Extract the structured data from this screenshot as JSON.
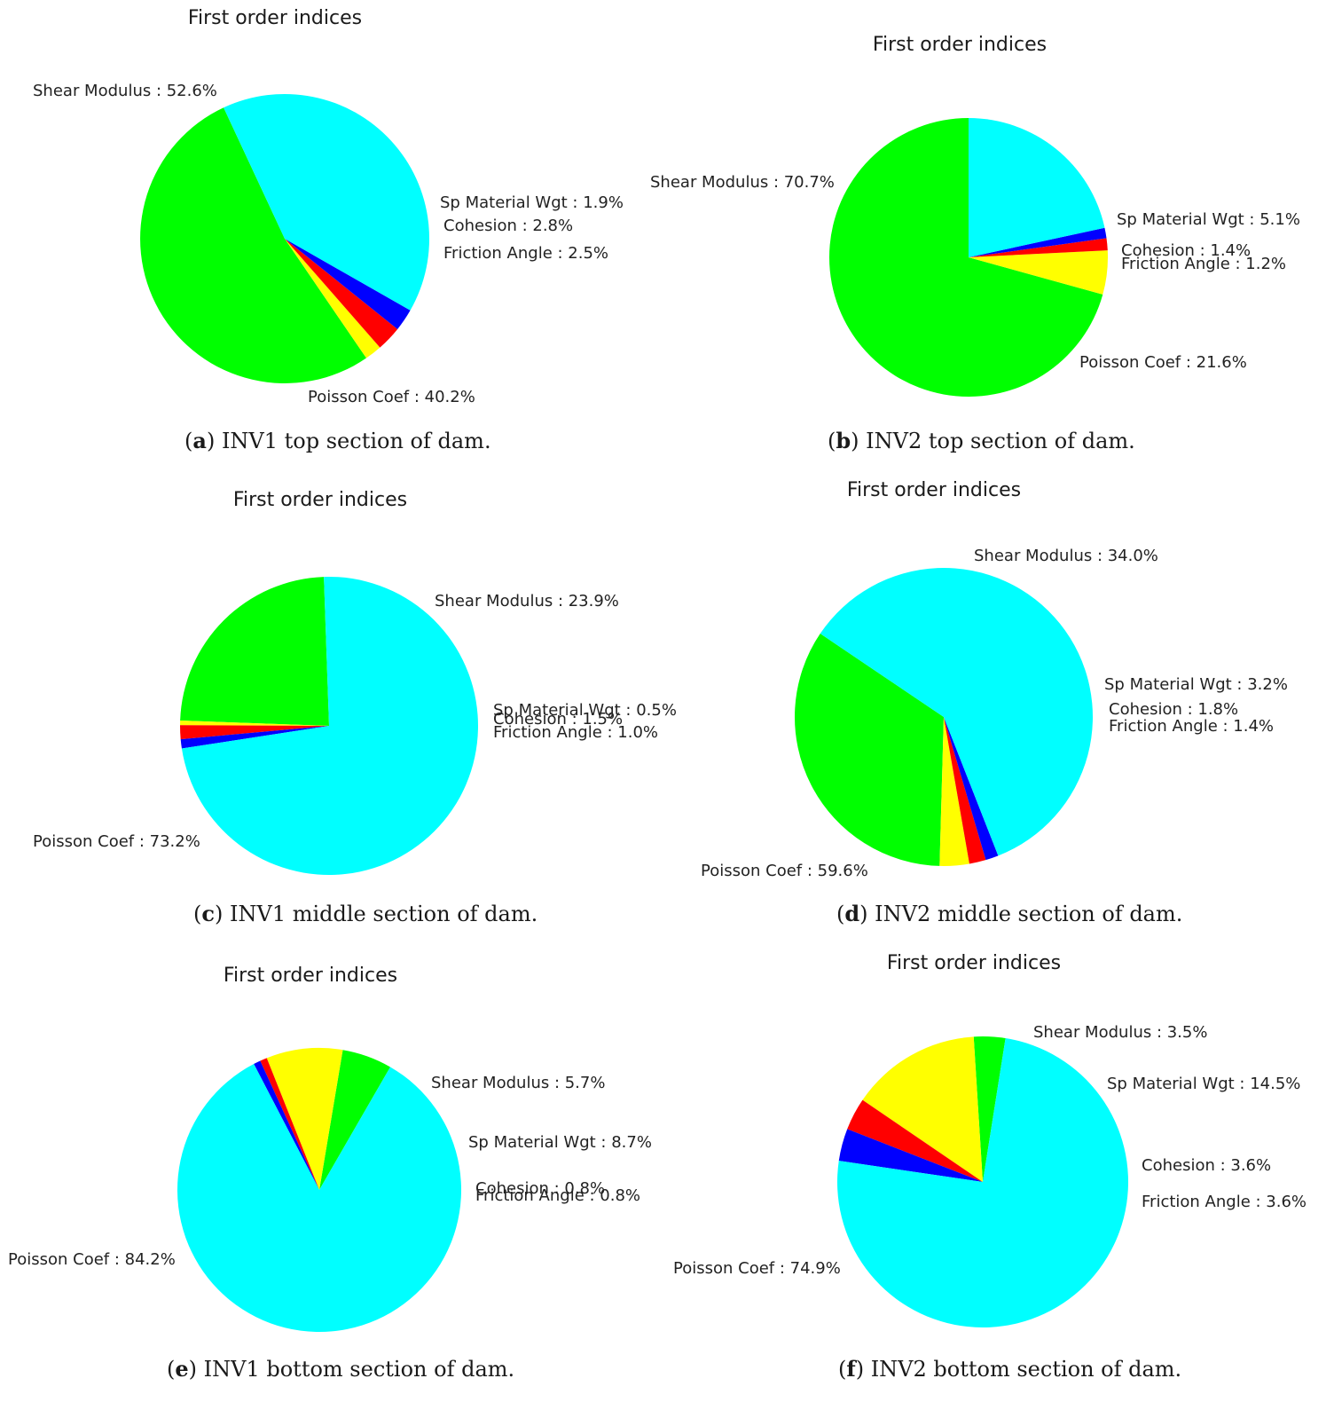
{
  "colors": {
    "Shear Modulus": "#00ff00",
    "Sp Material Wgt": "#ffff00",
    "Cohesion": "#ff0000",
    "Friction Angle": "#0000ff",
    "Poisson Coef": "#00ffff"
  },
  "panels": [
    {
      "caption_letter": "a",
      "caption_text": "INV1 top section of dam.",
      "chart_data": {
        "type": "pie",
        "title": "First order indices",
        "slices": [
          {
            "name": "Shear Modulus",
            "value": 52.6,
            "label": "Shear Modulus : 52.6%"
          },
          {
            "name": "Sp Material Wgt",
            "value": 1.9,
            "label": "Sp Material Wgt : 1.9%"
          },
          {
            "name": "Cohesion",
            "value": 2.8,
            "label": "Cohesion : 2.8%"
          },
          {
            "name": "Friction Angle",
            "value": 2.5,
            "label": "Friction Angle : 2.5%"
          },
          {
            "name": "Poisson Coef",
            "value": 40.2,
            "label": "Poisson Coef : 40.2%"
          }
        ]
      }
    },
    {
      "caption_letter": "b",
      "caption_text": "INV2 top section of dam.",
      "chart_data": {
        "type": "pie",
        "title": "First order indices",
        "slices": [
          {
            "name": "Shear Modulus",
            "value": 70.7,
            "label": "Shear Modulus : 70.7%"
          },
          {
            "name": "Sp Material Wgt",
            "value": 5.1,
            "label": "Sp Material Wgt : 5.1%"
          },
          {
            "name": "Cohesion",
            "value": 1.4,
            "label": "Cohesion : 1.4%"
          },
          {
            "name": "Friction Angle",
            "value": 1.2,
            "label": "Friction Angle : 1.2%"
          },
          {
            "name": "Poisson Coef",
            "value": 21.6,
            "label": "Poisson Coef : 21.6%"
          }
        ]
      }
    },
    {
      "caption_letter": "c",
      "caption_text": "INV1 middle section of dam.",
      "chart_data": {
        "type": "pie",
        "title": "First order indices",
        "slices": [
          {
            "name": "Shear Modulus",
            "value": 23.9,
            "label": "Shear Modulus : 23.9%"
          },
          {
            "name": "Sp Material Wgt",
            "value": 0.5,
            "label": "Sp Material Wgt : 0.5%"
          },
          {
            "name": "Cohesion",
            "value": 1.5,
            "label": "Cohesion : 1.5%"
          },
          {
            "name": "Friction Angle",
            "value": 1.0,
            "label": "Friction Angle : 1.0%"
          },
          {
            "name": "Poisson Coef",
            "value": 73.2,
            "label": "Poisson Coef : 73.2%"
          }
        ]
      }
    },
    {
      "caption_letter": "d",
      "caption_text": "INV2 middle section of dam.",
      "chart_data": {
        "type": "pie",
        "title": "First order indices",
        "slices": [
          {
            "name": "Shear Modulus",
            "value": 34.0,
            "label": "Shear Modulus : 34.0%"
          },
          {
            "name": "Sp Material Wgt",
            "value": 3.2,
            "label": "Sp Material Wgt : 3.2%"
          },
          {
            "name": "Cohesion",
            "value": 1.8,
            "label": "Cohesion : 1.8%"
          },
          {
            "name": "Friction Angle",
            "value": 1.4,
            "label": "Friction Angle : 1.4%"
          },
          {
            "name": "Poisson Coef",
            "value": 59.6,
            "label": "Poisson Coef : 59.6%"
          }
        ]
      }
    },
    {
      "caption_letter": "e",
      "caption_text": "INV1 bottom section of dam.",
      "chart_data": {
        "type": "pie",
        "title": "First order indices",
        "slices": [
          {
            "name": "Shear Modulus",
            "value": 5.7,
            "label": "Shear Modulus : 5.7%"
          },
          {
            "name": "Sp Material Wgt",
            "value": 8.7,
            "label": "Sp Material Wgt : 8.7%"
          },
          {
            "name": "Cohesion",
            "value": 0.8,
            "label": "Cohesion : 0.8%"
          },
          {
            "name": "Friction Angle",
            "value": 0.8,
            "label": "Friction Angle : 0.8%"
          },
          {
            "name": "Poisson Coef",
            "value": 84.2,
            "label": "Poisson Coef : 84.2%"
          }
        ]
      }
    },
    {
      "caption_letter": "f",
      "caption_text": "INV2 bottom section of dam.",
      "chart_data": {
        "type": "pie",
        "title": "First order indices",
        "slices": [
          {
            "name": "Shear Modulus",
            "value": 3.5,
            "label": "Shear Modulus : 3.5%"
          },
          {
            "name": "Sp Material Wgt",
            "value": 14.5,
            "label": "Sp Material Wgt : 14.5%"
          },
          {
            "name": "Cohesion",
            "value": 3.6,
            "label": "Cohesion : 3.6%"
          },
          {
            "name": "Friction Angle",
            "value": 3.6,
            "label": "Friction Angle : 3.6%"
          },
          {
            "name": "Poisson Coef",
            "value": 74.9,
            "label": "Poisson Coef : 74.9%"
          }
        ]
      }
    }
  ]
}
